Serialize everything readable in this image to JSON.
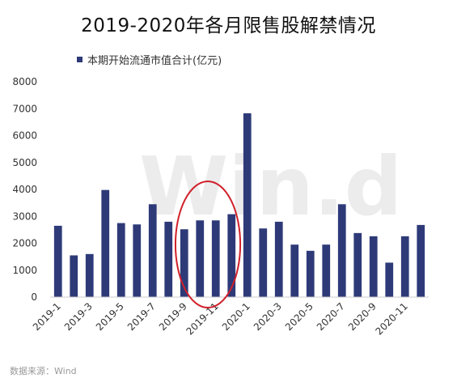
{
  "watermark": "Win.d",
  "source": "数据来源：Wind",
  "colors": {
    "bar": "#2e3a78",
    "axis": "#cccccc",
    "highlight": "#d0202a"
  },
  "highlight": {
    "shape": "ellipse",
    "from_category": "2019-9",
    "to_category": "2019-12"
  },
  "chart_data": {
    "type": "bar",
    "title": "2019-2020年各月限售股解禁情况",
    "xlabel": "",
    "ylabel": "",
    "ylim": [
      0,
      8000
    ],
    "yticks": [
      0,
      1000,
      2000,
      3000,
      4000,
      5000,
      6000,
      7000,
      8000
    ],
    "grid": false,
    "legend_position": "top-left",
    "categories": [
      "2019-1",
      "2019-2",
      "2019-3",
      "2019-4",
      "2019-5",
      "2019-6",
      "2019-7",
      "2019-8",
      "2019-9",
      "2019-10",
      "2019-11",
      "2019-12",
      "2020-1",
      "2020-2",
      "2020-3",
      "2020-4",
      "2020-5",
      "2020-6",
      "2020-7",
      "2020-8",
      "2020-9",
      "2020-10",
      "2020-11",
      "2020-12"
    ],
    "xtick_labels_shown": [
      "2019-1",
      "2019-3",
      "2019-5",
      "2019-7",
      "2019-9",
      "2019-11",
      "2020-1",
      "2020-3",
      "2020-5",
      "2020-7",
      "2020-9",
      "2020-11"
    ],
    "series": [
      {
        "name": "本期开始流通市值合计(亿元)",
        "values": [
          2650,
          1550,
          1600,
          3980,
          2750,
          2700,
          3450,
          2800,
          2520,
          2850,
          2850,
          3080,
          6830,
          2550,
          2800,
          1950,
          1720,
          1950,
          3450,
          2380,
          2260,
          1280,
          2260,
          2680
        ]
      }
    ]
  }
}
